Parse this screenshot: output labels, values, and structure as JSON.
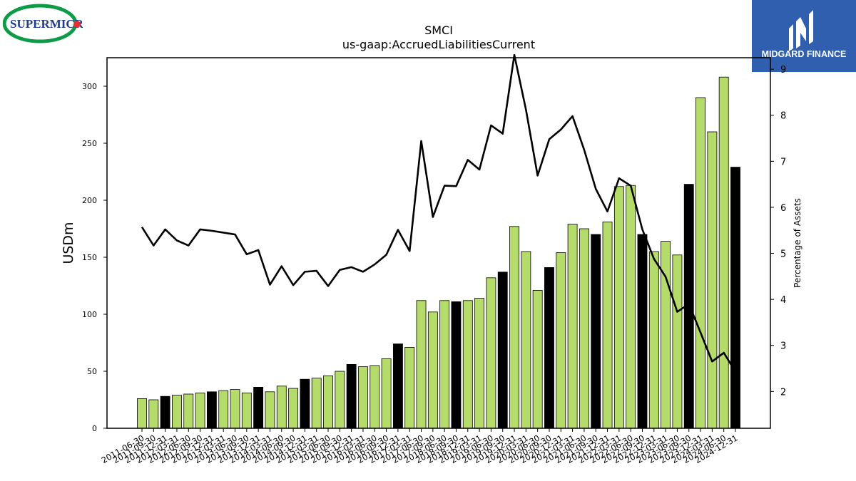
{
  "logos": {
    "left_text": "SUPERMICR",
    "right_text": "MIDGARD FINANCE"
  },
  "colors": {
    "bar_green": "#b5dc6b",
    "bar_black": "#000000",
    "line": "#000000",
    "midgard_bg": "#2f5fae",
    "supermicro_green": "#0d9b48",
    "supermicro_navy": "#1f3d8c",
    "supermicro_red": "#e0302f"
  },
  "chart_data": {
    "type": "bar",
    "title": "SMCI",
    "subtitle": "us-gaap:AccruedLiabilitiesCurrent",
    "ylabel": "USDm",
    "y2label": "Percentage of Assets",
    "ylim": [
      0,
      325
    ],
    "y2lim": [
      1.2,
      9.25
    ],
    "yticks": [
      0,
      50,
      100,
      150,
      200,
      250,
      300
    ],
    "y2ticks": [
      2,
      3,
      4,
      5,
      6,
      7,
      8,
      9
    ],
    "categories": [
      "2011-06-30",
      "2011-09-30",
      "2011-12-31",
      "2012-03-31",
      "2012-06-30",
      "2012-09-30",
      "2012-12-31",
      "2013-03-31",
      "2013-06-30",
      "2013-09-30",
      "2013-12-31",
      "2014-03-31",
      "2014-06-30",
      "2014-09-30",
      "2014-12-31",
      "2015-03-31",
      "2015-06-30",
      "2015-09-30",
      "2015-12-31",
      "2016-03-31",
      "2016-06-30",
      "2016-09-30",
      "2016-12-31",
      "2017-03-31",
      "2017-06-30",
      "2017-09-30",
      "2018-06-30",
      "2018-09-30",
      "2018-12-31",
      "2019-03-31",
      "2019-06-30",
      "2019-09-30",
      "2019-12-31",
      "2020-03-31",
      "2020-06-30",
      "2020-09-30",
      "2020-12-31",
      "2021-03-31",
      "2021-06-30",
      "2021-09-30",
      "2021-12-31",
      "2022-03-31",
      "2022-06-30",
      "2022-09-30",
      "2022-12-31",
      "2023-03-31",
      "2023-06-30",
      "2023-09-30",
      "2023-12-31",
      "2024-03-31",
      "2024-06-30",
      "2024-12-31"
    ],
    "values": [
      26,
      25,
      28,
      29,
      30,
      31,
      32,
      33,
      34,
      31,
      36,
      32,
      37,
      35,
      43,
      44,
      46,
      50,
      56,
      54,
      55,
      61,
      74,
      71,
      112,
      102,
      112,
      111,
      112,
      114,
      132,
      137,
      177,
      155,
      121,
      141,
      154,
      179,
      175,
      170,
      181,
      212,
      213,
      170,
      155,
      164,
      152,
      214,
      290,
      260,
      308,
      229
    ],
    "highlight": [
      false,
      false,
      true,
      false,
      false,
      false,
      true,
      false,
      false,
      false,
      true,
      false,
      false,
      false,
      true,
      false,
      false,
      false,
      true,
      false,
      false,
      false,
      true,
      false,
      false,
      false,
      false,
      true,
      false,
      false,
      false,
      true,
      false,
      false,
      false,
      true,
      false,
      false,
      false,
      true,
      false,
      false,
      false,
      true,
      false,
      false,
      false,
      true,
      false,
      false,
      false,
      true
    ],
    "line_values": [
      5.57,
      5.17,
      5.52,
      5.28,
      5.17,
      5.52,
      5.49,
      5.45,
      5.41,
      4.98,
      5.07,
      4.32,
      4.72,
      4.31,
      4.6,
      4.62,
      4.29,
      4.64,
      4.7,
      4.6,
      4.76,
      4.97,
      5.51,
      5.05,
      7.44,
      5.79,
      6.47,
      6.46,
      7.03,
      6.82,
      7.78,
      7.6,
      9.31,
      8.12,
      6.69,
      7.48,
      7.69,
      7.98,
      7.25,
      6.4,
      5.91,
      6.63,
      6.47,
      5.52,
      4.88,
      4.49,
      3.73,
      3.9,
      3.28,
      2.65,
      2.84,
      2.43
    ]
  }
}
